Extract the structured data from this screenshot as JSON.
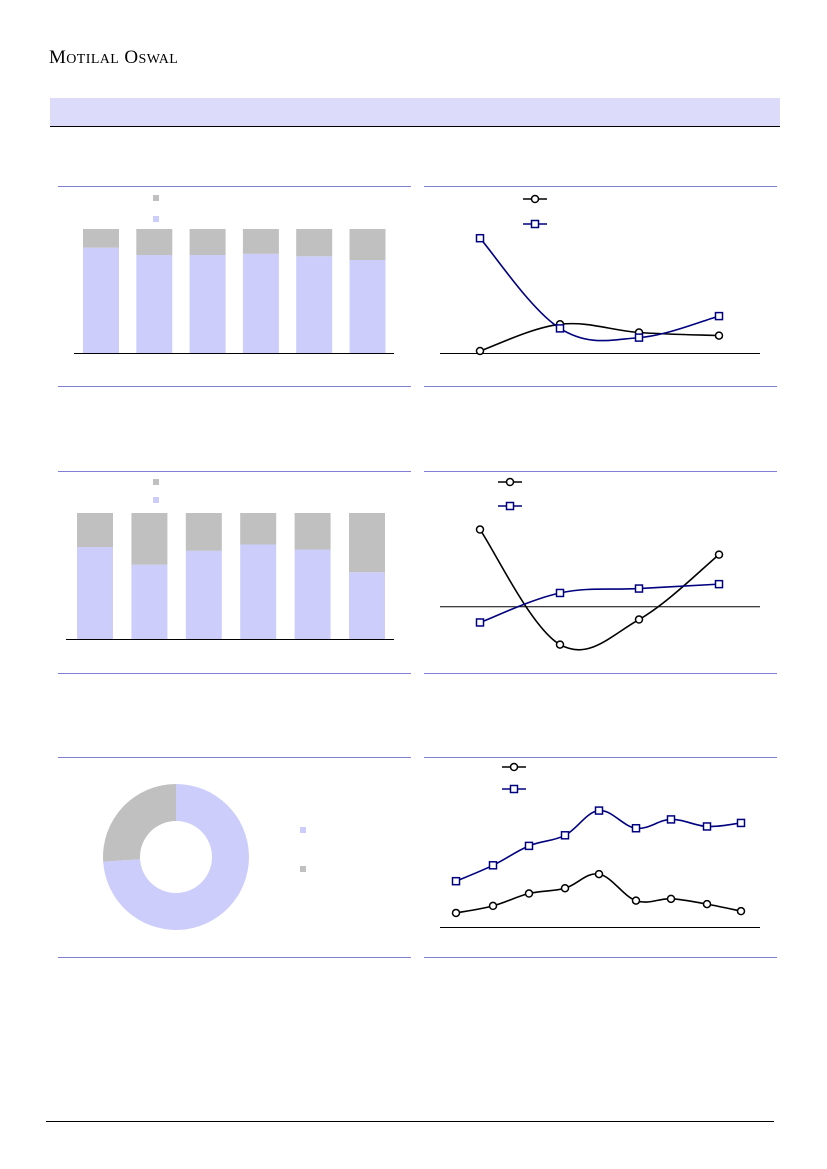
{
  "header": {
    "brand_first_cap": "M",
    "brand_first_rest": "OTILAL",
    "brand_second_cap": "O",
    "brand_second_rest": "SWAL"
  },
  "colors": {
    "lavender": "#cccdfb",
    "gray": "#c0c0c0",
    "navy": "#00007f",
    "black": "#000000",
    "panel_rule": "#7f7fd6",
    "section_band": "#dcdcfa"
  },
  "chart_data": [
    {
      "type": "bar",
      "stacked": true,
      "percent": true,
      "categories": [
        "",
        "",
        "",
        "",
        "",
        ""
      ],
      "series": [
        {
          "color": "#cccdfb",
          "values": [
            85,
            79,
            79,
            80,
            78,
            75
          ]
        },
        {
          "color": "#c0c0c0",
          "values": [
            15,
            21,
            21,
            20,
            22,
            25
          ]
        }
      ],
      "ylim": [
        0,
        100
      ],
      "legend": "top-left",
      "grid": false
    },
    {
      "type": "line",
      "x": [
        1,
        2,
        3,
        4
      ],
      "series": [
        {
          "color": "#000000",
          "marker": "circle",
          "values": [
            2,
            28,
            20,
            17
          ]
        },
        {
          "color": "#00007f",
          "marker": "square",
          "values": [
            112,
            24,
            15,
            36
          ]
        }
      ],
      "ylim": [
        0,
        120
      ],
      "legend": "top-left",
      "grid": false
    },
    {
      "type": "bar",
      "stacked": true,
      "percent": true,
      "categories": [
        "",
        "",
        "",
        "",
        "",
        ""
      ],
      "series": [
        {
          "color": "#cccdfb",
          "values": [
            73,
            59,
            70,
            75,
            71,
            53
          ]
        },
        {
          "color": "#c0c0c0",
          "values": [
            27,
            41,
            30,
            25,
            29,
            47
          ]
        }
      ],
      "ylim": [
        0,
        100
      ],
      "legend": "top-left",
      "grid": false
    },
    {
      "type": "line",
      "x": [
        1,
        2,
        3,
        4
      ],
      "series": [
        {
          "color": "#000000",
          "marker": "circle",
          "values": [
            52,
            -26,
            -9,
            35
          ]
        },
        {
          "color": "#00007f",
          "marker": "square",
          "values": [
            -11,
            9,
            12,
            15
          ]
        }
      ],
      "ylim": [
        -50,
        70
      ],
      "legend": "top-left",
      "grid": false
    },
    {
      "type": "pie",
      "donut": true,
      "series": [
        {
          "color": "#cccdfb",
          "value": 74
        },
        {
          "color": "#c0c0c0",
          "value": 26
        }
      ],
      "legend": "right"
    },
    {
      "type": "line",
      "x": [
        1,
        2,
        3,
        4,
        5,
        6,
        7,
        8,
        9
      ],
      "series": [
        {
          "color": "#000000",
          "marker": "circle",
          "values": [
            16,
            20,
            27,
            30,
            38,
            23,
            24,
            21,
            17
          ]
        },
        {
          "color": "#00007f",
          "marker": "square",
          "values": [
            34,
            43,
            54,
            60,
            74,
            64,
            69,
            65,
            67
          ]
        }
      ],
      "ylim": [
        -5,
        80
      ],
      "legend": "top-left",
      "grid": false
    }
  ]
}
